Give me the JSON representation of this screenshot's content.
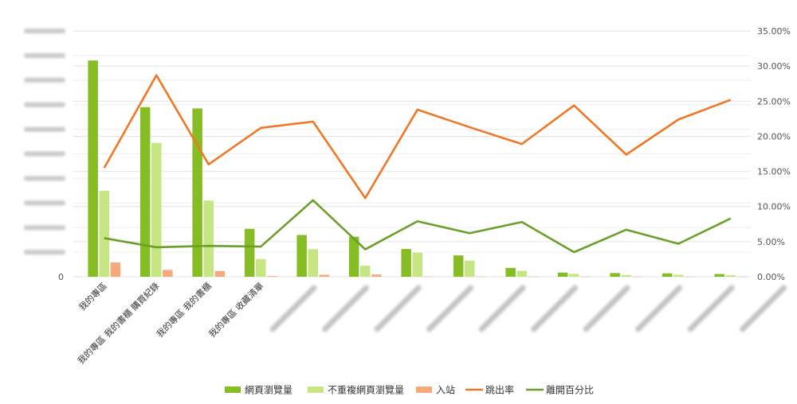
{
  "chart_data": {
    "type": "bar",
    "categories": [
      "我的專區",
      "我的專區 我的書櫃 購買紀錄",
      "我的專區 我的書櫃",
      "我的專區 收藏清單",
      "",
      "",
      "",
      "",
      "",
      "",
      "",
      "",
      "",
      ""
    ],
    "y_left": {
      "ylim": [
        0,
        10000000
      ],
      "ticks": [
        "0",
        "",
        "",
        "",
        "",
        "",
        "",
        "",
        "",
        "",
        ""
      ],
      "obscured": true
    },
    "y_right": {
      "ylim": [
        0,
        0.35
      ],
      "ticks": [
        "0.00%",
        "5.00%",
        "10.00%",
        "15.00%",
        "20.00%",
        "25.00%",
        "30.00%",
        "35.00%"
      ]
    },
    "series": [
      {
        "name": "網頁瀏覽量",
        "type": "bar",
        "axis": "left",
        "color": "#86bd24",
        "values": [
          8800000,
          6900000,
          6850000,
          1950000,
          1700000,
          1630000,
          1130000,
          870000,
          360000,
          170000,
          150000,
          140000,
          110000,
          null
        ]
      },
      {
        "name": "不重複網頁瀏覽量",
        "type": "bar",
        "axis": "left",
        "color": "#c5e683",
        "values": [
          3500000,
          5450000,
          3100000,
          720000,
          1120000,
          450000,
          980000,
          660000,
          240000,
          120000,
          70000,
          80000,
          60000,
          null
        ]
      },
      {
        "name": "入站",
        "type": "bar",
        "axis": "left",
        "color": "#f6a97b",
        "values": [
          580000,
          280000,
          230000,
          30000,
          80000,
          90000,
          15000,
          15000,
          5000,
          3000,
          2000,
          2000,
          2000,
          null
        ]
      },
      {
        "name": "跳出率",
        "type": "line",
        "axis": "right",
        "color": "#ef7725",
        "values": [
          0.155,
          0.287,
          0.16,
          0.212,
          0.221,
          0.112,
          0.238,
          0.213,
          0.189,
          0.244,
          0.174,
          0.224,
          0.252,
          null
        ]
      },
      {
        "name": "離開百分比",
        "type": "line",
        "axis": "right",
        "color": "#6c9f2a",
        "values": [
          0.055,
          0.042,
          0.044,
          0.043,
          0.109,
          0.039,
          0.079,
          0.062,
          0.078,
          0.035,
          0.067,
          0.047,
          0.083,
          null
        ]
      }
    ],
    "legend": "bottom",
    "grid": true
  }
}
